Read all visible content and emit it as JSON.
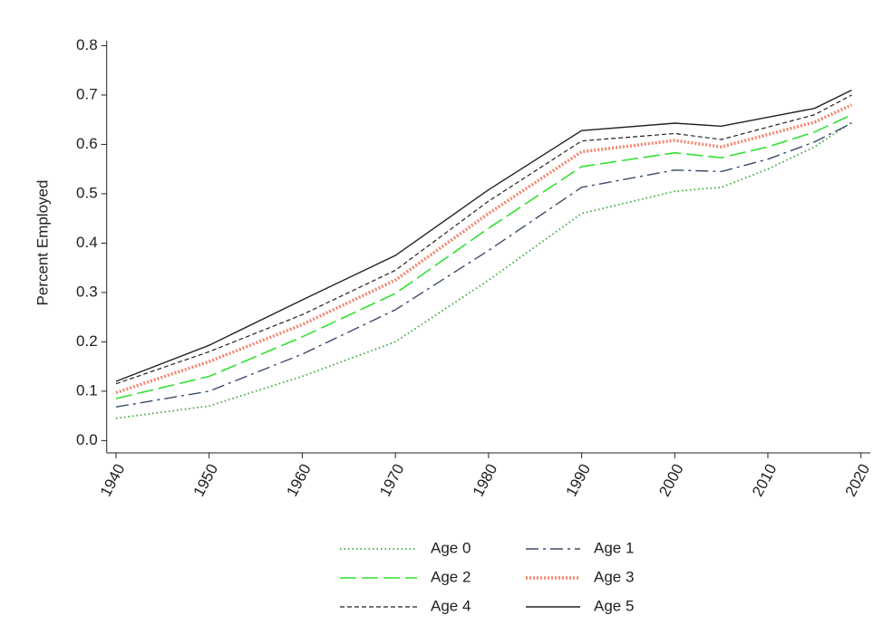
{
  "chart_data": {
    "type": "line",
    "y_label": "Percent Employed",
    "x": [
      1940,
      1950,
      1960,
      1970,
      1980,
      1990,
      2000,
      2005,
      2010,
      2015,
      2019
    ],
    "xlim": [
      1939,
      2021
    ],
    "xticks": [
      1940,
      1950,
      1960,
      1970,
      1980,
      1990,
      2000,
      2010,
      2020
    ],
    "ylim": [
      -0.025,
      0.81
    ],
    "yticks": [
      {
        "value": 0,
        "label": "0.0"
      },
      0.1,
      0.2,
      0.3,
      0.4,
      0.5,
      0.6,
      0.7,
      0.8
    ],
    "series": [
      {
        "name": "Age 0",
        "color": "#3aa83a",
        "style": "dotted",
        "values": [
          0.045,
          0.07,
          0.13,
          0.2,
          0.325,
          0.46,
          0.505,
          0.513,
          0.55,
          0.595,
          0.645
        ]
      },
      {
        "name": "Age 1",
        "color": "#3b4a6b",
        "style": "dash-dot",
        "values": [
          0.068,
          0.1,
          0.175,
          0.265,
          0.385,
          0.513,
          0.548,
          0.545,
          0.57,
          0.605,
          0.643
        ]
      },
      {
        "name": "Age 2",
        "color": "#33e033",
        "style": "long-dash",
        "values": [
          0.085,
          0.13,
          0.21,
          0.298,
          0.43,
          0.555,
          0.583,
          0.573,
          0.595,
          0.625,
          0.66
        ]
      },
      {
        "name": "Age 3",
        "color": "#f4866e",
        "style": "dense-dot",
        "values": [
          0.097,
          0.16,
          0.235,
          0.325,
          0.46,
          0.585,
          0.608,
          0.595,
          0.62,
          0.645,
          0.68
        ]
      },
      {
        "name": "Age 4",
        "color": "#222222",
        "style": "dash",
        "values": [
          0.115,
          0.18,
          0.255,
          0.345,
          0.485,
          0.607,
          0.622,
          0.61,
          0.635,
          0.66,
          0.7
        ]
      },
      {
        "name": "Age 5",
        "color": "#222222",
        "style": "solid",
        "values": [
          0.12,
          0.193,
          0.285,
          0.375,
          0.508,
          0.628,
          0.643,
          0.637,
          0.655,
          0.673,
          0.71
        ]
      }
    ]
  }
}
